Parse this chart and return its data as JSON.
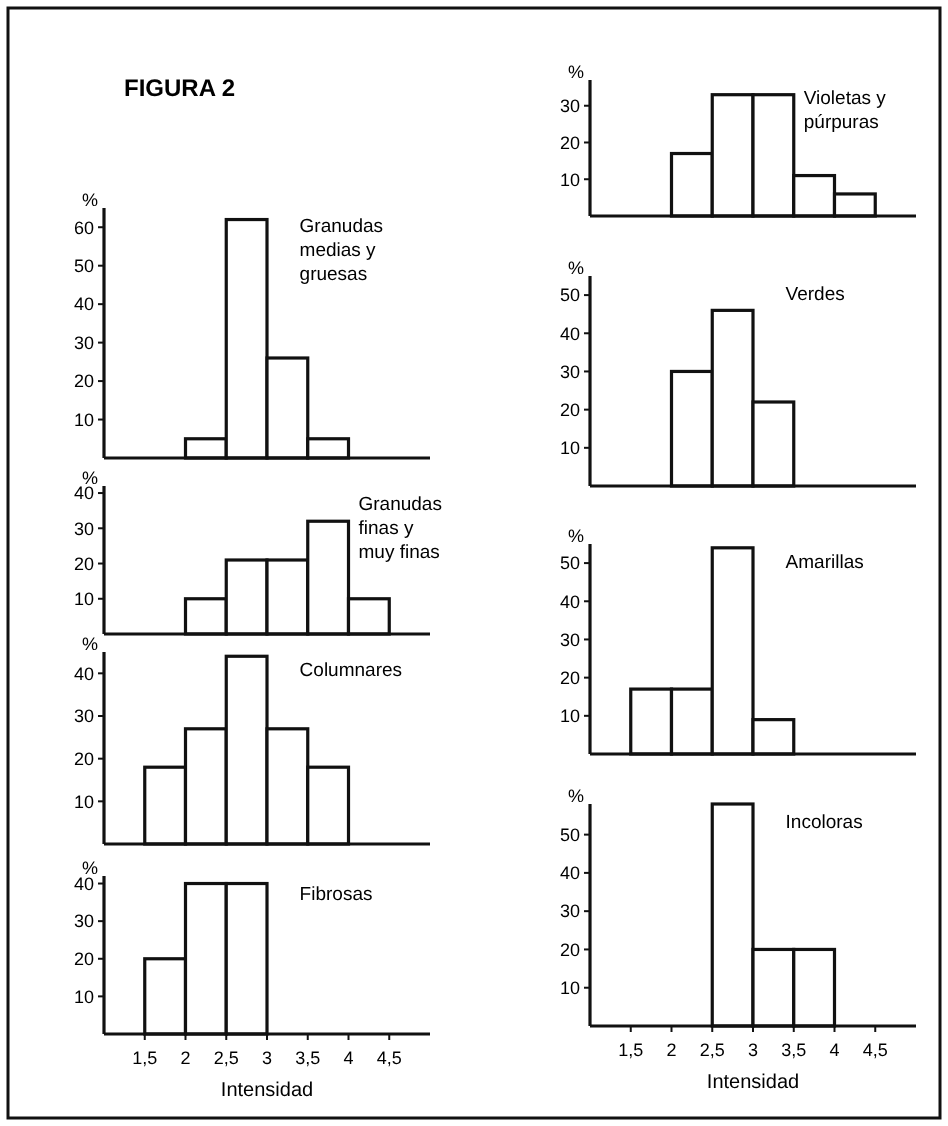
{
  "chart_data": [
    {
      "type": "histogram",
      "title": "Granudas medias y gruesas",
      "annotations": [
        "FIGURA 2"
      ],
      "ylabel": "%",
      "bins": [
        1.5,
        2,
        2.5,
        3,
        3.5,
        4,
        4.5
      ],
      "values": [
        0,
        5,
        62,
        26,
        5,
        0
      ],
      "color": "#ffffff",
      "xlim": [
        1,
        5
      ],
      "ylim": [
        0,
        65
      ],
      "yticks": [
        10,
        20,
        30,
        40,
        50,
        60
      ],
      "tick_labels": "y"
    },
    {
      "type": "histogram",
      "title": "Granudas finas y muy finas",
      "ylabel": "%",
      "bins": [
        1.5,
        2,
        2.5,
        3,
        3.5,
        4,
        4.5
      ],
      "values": [
        0,
        10,
        21,
        21,
        32,
        10
      ],
      "color": "#ffffff",
      "xlim": [
        1,
        5
      ],
      "ylim": [
        0,
        42
      ],
      "yticks": [
        10,
        20,
        30,
        40
      ],
      "tick_labels": "y"
    },
    {
      "type": "histogram",
      "title": "Columnares",
      "ylabel": "%",
      "bins": [
        1.5,
        2,
        2.5,
        3,
        3.5,
        4,
        4.5
      ],
      "values": [
        18,
        27,
        44,
        27,
        18,
        0
      ],
      "color": "#ffffff",
      "xlim": [
        1,
        5
      ],
      "ylim": [
        0,
        45
      ],
      "yticks": [
        10,
        20,
        30,
        40
      ],
      "tick_labels": "y"
    },
    {
      "type": "histogram",
      "title": "Fibrosas",
      "ylabel": "%",
      "xlabel": "Intensidad",
      "bins": [
        1.5,
        2,
        2.5,
        3,
        3.5,
        4,
        4.5
      ],
      "values": [
        20,
        40,
        40,
        0,
        0,
        0
      ],
      "color": "#ffffff",
      "xlim": [
        1,
        5
      ],
      "xticks": [
        {
          "value": 1.5,
          "label": "1,5"
        },
        2,
        {
          "value": 2.5,
          "label": "2,5"
        },
        3,
        {
          "value": 3.5,
          "label": "3,5"
        },
        4,
        {
          "value": 4.5,
          "label": "4,5"
        }
      ],
      "ylim": [
        0,
        42
      ],
      "yticks": [
        10,
        20,
        30,
        40
      ]
    },
    {
      "type": "histogram",
      "title": "Violetas y púrpuras",
      "ylabel": "%",
      "bins": [
        1.5,
        2,
        2.5,
        3,
        3.5,
        4,
        4.5
      ],
      "values": [
        0,
        17,
        33,
        33,
        11,
        6
      ],
      "color": "#ffffff",
      "xlim": [
        1,
        5
      ],
      "ylim": [
        0,
        37
      ],
      "yticks": [
        10,
        20,
        30
      ],
      "tick_labels": "y"
    },
    {
      "type": "histogram",
      "title": "Verdes",
      "ylabel": "%",
      "bins": [
        1.5,
        2,
        2.5,
        3,
        3.5,
        4,
        4.5
      ],
      "values": [
        0,
        30,
        46,
        22,
        0,
        0
      ],
      "color": "#ffffff",
      "xlim": [
        1,
        5
      ],
      "ylim": [
        0,
        55
      ],
      "yticks": [
        10,
        20,
        30,
        40,
        50
      ],
      "tick_labels": "y"
    },
    {
      "type": "histogram",
      "title": "Amarillas",
      "ylabel": "%",
      "bins": [
        1.5,
        2,
        2.5,
        3,
        3.5,
        4,
        4.5
      ],
      "values": [
        17,
        17,
        54,
        9,
        0,
        0
      ],
      "color": "#ffffff",
      "xlim": [
        1,
        5
      ],
      "ylim": [
        0,
        55
      ],
      "yticks": [
        10,
        20,
        30,
        40,
        50
      ],
      "tick_labels": "y"
    },
    {
      "type": "histogram",
      "title": "Incoloras",
      "ylabel": "%",
      "xlabel": "Intensidad",
      "bins": [
        1.5,
        2,
        2.5,
        3,
        3.5,
        4,
        4.5
      ],
      "values": [
        0,
        0,
        58,
        20,
        20,
        0
      ],
      "color": "#ffffff",
      "xlim": [
        1,
        5
      ],
      "xticks": [
        {
          "value": 1.5,
          "label": "1,5"
        },
        2,
        {
          "value": 2.5,
          "label": "2,5"
        },
        3,
        {
          "value": 3.5,
          "label": "3,5"
        },
        4,
        {
          "value": 4.5,
          "label": "4,5"
        }
      ],
      "ylim": [
        0,
        58
      ],
      "yticks": [
        10,
        20,
        30,
        40,
        50
      ]
    }
  ]
}
